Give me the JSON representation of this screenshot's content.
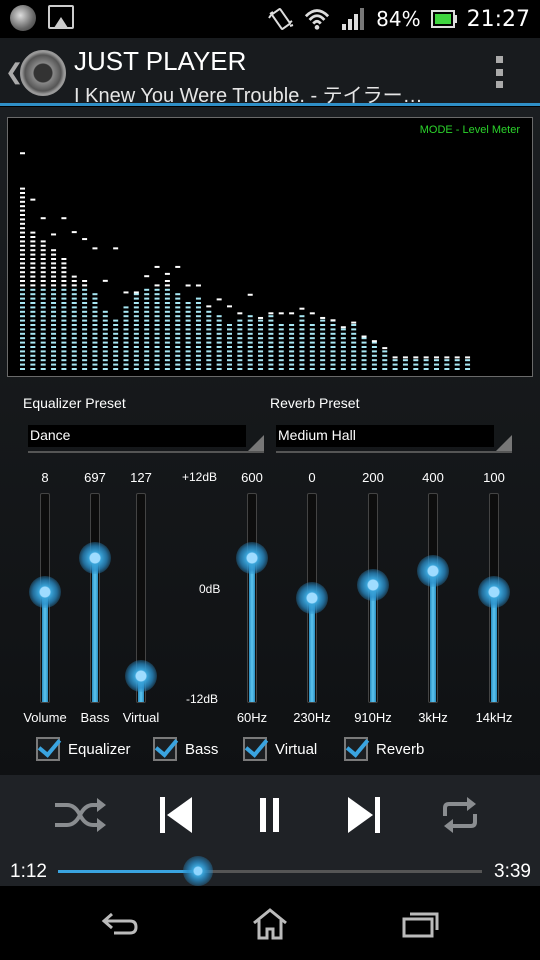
{
  "status_bar": {
    "battery_percent": "84%",
    "time": "21:27",
    "icons": [
      "media-notification-icon",
      "image-notification-icon",
      "vibrate-icon",
      "wifi-icon",
      "signal-icon",
      "battery-icon"
    ]
  },
  "app_bar": {
    "title": "JUST PLAYER",
    "subtitle": "I Knew You Were Trouble. - テイラー…",
    "menu_icon": "overflow-menu-icon"
  },
  "level_meter": {
    "mode_label": "MODE - Level Meter",
    "bands": [
      0.79,
      0.6,
      0.56,
      0.53,
      0.49,
      0.4,
      0.38,
      0.33,
      0.26,
      0.21,
      0.28,
      0.33,
      0.36,
      0.37,
      0.38,
      0.34,
      0.29,
      0.31,
      0.25,
      0.24,
      0.19,
      0.21,
      0.23,
      0.22,
      0.23,
      0.2,
      0.2,
      0.24,
      0.2,
      0.22,
      0.21,
      0.18,
      0.2,
      0.14,
      0.12,
      0.09,
      0.05,
      0.05,
      0.05,
      0.05,
      0.05,
      0.05,
      0.05,
      0.05
    ],
    "peaks": [
      0.93,
      0.73,
      0.65,
      0.58,
      0.65,
      0.59,
      0.56,
      0.52,
      0.38,
      0.52,
      0.33,
      0.33,
      0.4,
      0.44,
      0.41,
      0.44,
      0.36,
      0.36,
      0.27,
      0.3,
      0.27,
      0.24,
      0.32,
      0.22,
      0.24,
      0.24,
      0.24,
      0.26,
      0.24,
      0.22,
      0.21,
      0.18,
      0.2,
      0.14,
      0.12,
      0.09,
      0.05,
      0.05,
      0.05,
      0.05,
      0.05,
      0.05,
      0.05,
      0.05
    ]
  },
  "equalizer_preset": {
    "label": "Equalizer Preset",
    "value": "Dance"
  },
  "reverb_preset": {
    "label": "Reverb Preset",
    "value": "Medium Hall"
  },
  "effect_sliders": [
    {
      "name": "Volume",
      "value": "8",
      "level": 0.53
    },
    {
      "name": "Bass",
      "value": "697",
      "level": 0.69
    },
    {
      "name": "Virtual",
      "value": "127",
      "level": 0.13
    }
  ],
  "db_scale": {
    "top": "+12dB",
    "middle": "0dB",
    "bottom": "-12dB"
  },
  "eq_bands": [
    {
      "name": "60Hz",
      "value": "600",
      "level": 0.69
    },
    {
      "name": "230Hz",
      "value": "0",
      "level": 0.5
    },
    {
      "name": "910Hz",
      "value": "200",
      "level": 0.56
    },
    {
      "name": "3kHz",
      "value": "400",
      "level": 0.63
    },
    {
      "name": "14kHz",
      "value": "100",
      "level": 0.53
    }
  ],
  "toggles": [
    {
      "label": "Equalizer",
      "checked": true
    },
    {
      "label": "Bass",
      "checked": true
    },
    {
      "label": "Virtual",
      "checked": true
    },
    {
      "label": "Reverb",
      "checked": true
    }
  ],
  "player": {
    "elapsed": "1:12",
    "duration": "3:39",
    "progress": 0.33,
    "controls": [
      "shuffle-icon",
      "previous-icon",
      "pause-icon",
      "next-icon",
      "repeat-icon"
    ]
  },
  "nav_bar": {
    "buttons": [
      "back-icon",
      "home-icon",
      "recent-apps-icon"
    ]
  }
}
